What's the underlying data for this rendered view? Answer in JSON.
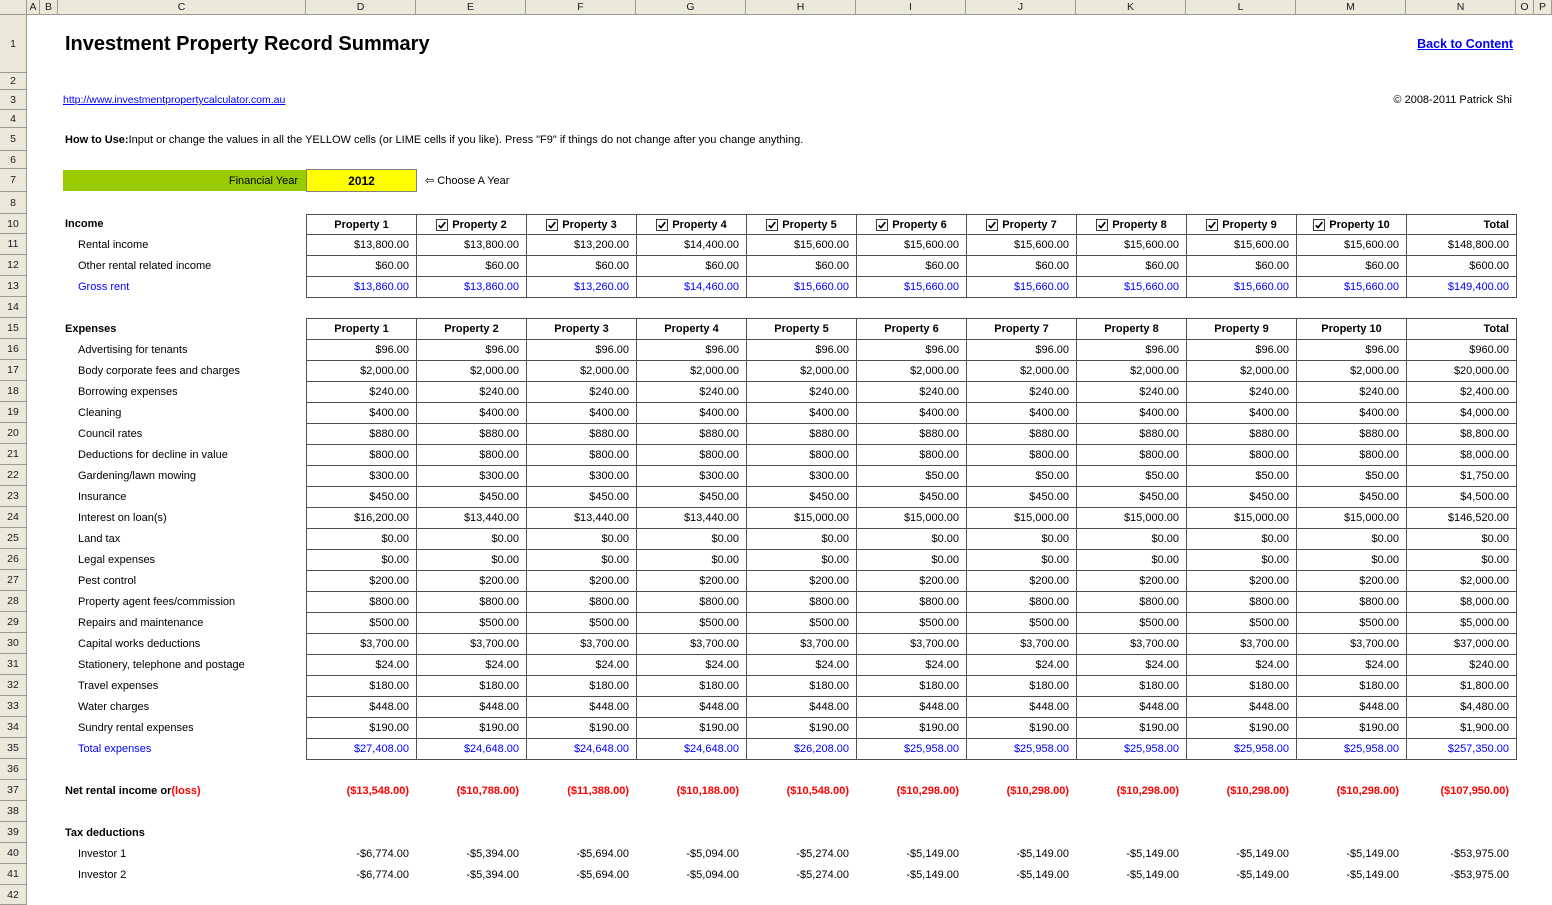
{
  "colors": {
    "lime": "#99CC00",
    "yellow": "#FFFF00",
    "link_blue": "#0000FF",
    "formula_blue": "#0000FF",
    "loss_red": "#FF0000",
    "header_grey": "#ECE9DB"
  },
  "sheet": {
    "column_letters": [
      "A",
      "B",
      "C",
      "D",
      "E",
      "F",
      "G",
      "H",
      "I",
      "J",
      "K",
      "L",
      "M",
      "N",
      "O",
      "P"
    ],
    "row_numbers": [
      "1",
      "2",
      "3",
      "4",
      "5",
      "6",
      "7",
      "8",
      "10",
      "11",
      "12",
      "13",
      "14",
      "15",
      "16",
      "17",
      "18",
      "19",
      "20",
      "21",
      "22",
      "23",
      "24",
      "25",
      "26",
      "27",
      "28",
      "29",
      "30",
      "31",
      "32",
      "33",
      "34",
      "35",
      "36",
      "37",
      "38",
      "39",
      "40",
      "41",
      "42"
    ]
  },
  "header": {
    "title": "Investment Property Record Summary",
    "back_link": "Back to Content",
    "url": "http://www.investmentpropertycalculator.com.au",
    "copyright": "© 2008-2011 Patrick Shi",
    "how_to_use_label": "How to Use:",
    "how_to_use_text": " Input or change the values in all the YELLOW cells (or LIME cells if you like). Press \"F9\" if things do not change after you change anything."
  },
  "financial_year": {
    "label": "Financial Year",
    "value": "2012",
    "hint": "⇦ Choose A Year"
  },
  "income": {
    "section_label": "Income",
    "columns": [
      {
        "label": "Property 1",
        "checkbox": false
      },
      {
        "label": "Property 2",
        "checkbox": true
      },
      {
        "label": "Property 3",
        "checkbox": true
      },
      {
        "label": "Property 4",
        "checkbox": true
      },
      {
        "label": "Property 5",
        "checkbox": true
      },
      {
        "label": "Property 6",
        "checkbox": true
      },
      {
        "label": "Property 7",
        "checkbox": true
      },
      {
        "label": "Property 8",
        "checkbox": true
      },
      {
        "label": "Property 9",
        "checkbox": true
      },
      {
        "label": "Property 10",
        "checkbox": true
      },
      {
        "label": "Total",
        "checkbox": false
      }
    ],
    "rows": [
      {
        "label": "Rental income",
        "style": "normal",
        "values": [
          "$13,800.00",
          "$13,800.00",
          "$13,200.00",
          "$14,400.00",
          "$15,600.00",
          "$15,600.00",
          "$15,600.00",
          "$15,600.00",
          "$15,600.00",
          "$15,600.00",
          "$148,800.00"
        ]
      },
      {
        "label": "Other rental related income",
        "style": "normal",
        "values": [
          "$60.00",
          "$60.00",
          "$60.00",
          "$60.00",
          "$60.00",
          "$60.00",
          "$60.00",
          "$60.00",
          "$60.00",
          "$60.00",
          "$600.00"
        ]
      },
      {
        "label": "Gross rent",
        "style": "blue",
        "values": [
          "$13,860.00",
          "$13,860.00",
          "$13,260.00",
          "$14,460.00",
          "$15,660.00",
          "$15,660.00",
          "$15,660.00",
          "$15,660.00",
          "$15,660.00",
          "$15,660.00",
          "$149,400.00"
        ]
      }
    ]
  },
  "expenses": {
    "section_label": "Expenses",
    "columns": [
      {
        "label": "Property 1",
        "checkbox": false
      },
      {
        "label": "Property 2",
        "checkbox": false
      },
      {
        "label": "Property 3",
        "checkbox": false
      },
      {
        "label": "Property 4",
        "checkbox": false
      },
      {
        "label": "Property 5",
        "checkbox": false
      },
      {
        "label": "Property 6",
        "checkbox": false
      },
      {
        "label": "Property 7",
        "checkbox": false
      },
      {
        "label": "Property 8",
        "checkbox": false
      },
      {
        "label": "Property 9",
        "checkbox": false
      },
      {
        "label": "Property 10",
        "checkbox": false
      },
      {
        "label": "Total",
        "checkbox": false
      }
    ],
    "rows": [
      {
        "label": "Advertising for tenants",
        "style": "normal",
        "values": [
          "$96.00",
          "$96.00",
          "$96.00",
          "$96.00",
          "$96.00",
          "$96.00",
          "$96.00",
          "$96.00",
          "$96.00",
          "$96.00",
          "$960.00"
        ]
      },
      {
        "label": "Body corporate fees and charges",
        "style": "normal",
        "values": [
          "$2,000.00",
          "$2,000.00",
          "$2,000.00",
          "$2,000.00",
          "$2,000.00",
          "$2,000.00",
          "$2,000.00",
          "$2,000.00",
          "$2,000.00",
          "$2,000.00",
          "$20,000.00"
        ]
      },
      {
        "label": "Borrowing expenses",
        "style": "normal",
        "values": [
          "$240.00",
          "$240.00",
          "$240.00",
          "$240.00",
          "$240.00",
          "$240.00",
          "$240.00",
          "$240.00",
          "$240.00",
          "$240.00",
          "$2,400.00"
        ]
      },
      {
        "label": "Cleaning",
        "style": "normal",
        "values": [
          "$400.00",
          "$400.00",
          "$400.00",
          "$400.00",
          "$400.00",
          "$400.00",
          "$400.00",
          "$400.00",
          "$400.00",
          "$400.00",
          "$4,000.00"
        ]
      },
      {
        "label": "Council rates",
        "style": "normal",
        "values": [
          "$880.00",
          "$880.00",
          "$880.00",
          "$880.00",
          "$880.00",
          "$880.00",
          "$880.00",
          "$880.00",
          "$880.00",
          "$880.00",
          "$8,800.00"
        ]
      },
      {
        "label": "Deductions for decline in value",
        "style": "normal",
        "values": [
          "$800.00",
          "$800.00",
          "$800.00",
          "$800.00",
          "$800.00",
          "$800.00",
          "$800.00",
          "$800.00",
          "$800.00",
          "$800.00",
          "$8,000.00"
        ]
      },
      {
        "label": "Gardening/lawn mowing",
        "style": "normal",
        "values": [
          "$300.00",
          "$300.00",
          "$300.00",
          "$300.00",
          "$300.00",
          "$50.00",
          "$50.00",
          "$50.00",
          "$50.00",
          "$50.00",
          "$1,750.00"
        ]
      },
      {
        "label": "Insurance",
        "style": "normal",
        "values": [
          "$450.00",
          "$450.00",
          "$450.00",
          "$450.00",
          "$450.00",
          "$450.00",
          "$450.00",
          "$450.00",
          "$450.00",
          "$450.00",
          "$4,500.00"
        ]
      },
      {
        "label": "Interest on loan(s)",
        "style": "normal",
        "values": [
          "$16,200.00",
          "$13,440.00",
          "$13,440.00",
          "$13,440.00",
          "$15,000.00",
          "$15,000.00",
          "$15,000.00",
          "$15,000.00",
          "$15,000.00",
          "$15,000.00",
          "$146,520.00"
        ]
      },
      {
        "label": "Land tax",
        "style": "normal",
        "values": [
          "$0.00",
          "$0.00",
          "$0.00",
          "$0.00",
          "$0.00",
          "$0.00",
          "$0.00",
          "$0.00",
          "$0.00",
          "$0.00",
          "$0.00"
        ]
      },
      {
        "label": "Legal expenses",
        "style": "normal",
        "values": [
          "$0.00",
          "$0.00",
          "$0.00",
          "$0.00",
          "$0.00",
          "$0.00",
          "$0.00",
          "$0.00",
          "$0.00",
          "$0.00",
          "$0.00"
        ]
      },
      {
        "label": "Pest control",
        "style": "normal",
        "values": [
          "$200.00",
          "$200.00",
          "$200.00",
          "$200.00",
          "$200.00",
          "$200.00",
          "$200.00",
          "$200.00",
          "$200.00",
          "$200.00",
          "$2,000.00"
        ]
      },
      {
        "label": "Property agent fees/commission",
        "style": "normal",
        "values": [
          "$800.00",
          "$800.00",
          "$800.00",
          "$800.00",
          "$800.00",
          "$800.00",
          "$800.00",
          "$800.00",
          "$800.00",
          "$800.00",
          "$8,000.00"
        ]
      },
      {
        "label": "Repairs and maintenance",
        "style": "normal",
        "values": [
          "$500.00",
          "$500.00",
          "$500.00",
          "$500.00",
          "$500.00",
          "$500.00",
          "$500.00",
          "$500.00",
          "$500.00",
          "$500.00",
          "$5,000.00"
        ]
      },
      {
        "label": "Capital works deductions",
        "style": "normal",
        "values": [
          "$3,700.00",
          "$3,700.00",
          "$3,700.00",
          "$3,700.00",
          "$3,700.00",
          "$3,700.00",
          "$3,700.00",
          "$3,700.00",
          "$3,700.00",
          "$3,700.00",
          "$37,000.00"
        ]
      },
      {
        "label": "Stationery, telephone and postage",
        "style": "normal",
        "values": [
          "$24.00",
          "$24.00",
          "$24.00",
          "$24.00",
          "$24.00",
          "$24.00",
          "$24.00",
          "$24.00",
          "$24.00",
          "$24.00",
          "$240.00"
        ]
      },
      {
        "label": "Travel expenses",
        "style": "normal",
        "values": [
          "$180.00",
          "$180.00",
          "$180.00",
          "$180.00",
          "$180.00",
          "$180.00",
          "$180.00",
          "$180.00",
          "$180.00",
          "$180.00",
          "$1,800.00"
        ]
      },
      {
        "label": "Water charges",
        "style": "normal",
        "values": [
          "$448.00",
          "$448.00",
          "$448.00",
          "$448.00",
          "$448.00",
          "$448.00",
          "$448.00",
          "$448.00",
          "$448.00",
          "$448.00",
          "$4,480.00"
        ]
      },
      {
        "label": "Sundry rental expenses",
        "style": "normal",
        "values": [
          "$190.00",
          "$190.00",
          "$190.00",
          "$190.00",
          "$190.00",
          "$190.00",
          "$190.00",
          "$190.00",
          "$190.00",
          "$190.00",
          "$1,900.00"
        ]
      },
      {
        "label": "Total expenses",
        "style": "blue",
        "values": [
          "$27,408.00",
          "$24,648.00",
          "$24,648.00",
          "$24,648.00",
          "$26,208.00",
          "$25,958.00",
          "$25,958.00",
          "$25,958.00",
          "$25,958.00",
          "$25,958.00",
          "$257,350.00"
        ]
      }
    ]
  },
  "net_rental": {
    "label": "Net rental income or ",
    "loss_label": "(loss)",
    "values": [
      "($13,548.00)",
      "($10,788.00)",
      "($11,388.00)",
      "($10,188.00)",
      "($10,548.00)",
      "($10,298.00)",
      "($10,298.00)",
      "($10,298.00)",
      "($10,298.00)",
      "($10,298.00)",
      "($107,950.00)"
    ]
  },
  "tax_deductions": {
    "section_label": "Tax deductions",
    "rows": [
      {
        "label": "Investor 1",
        "values": [
          "-$6,774.00",
          "-$5,394.00",
          "-$5,694.00",
          "-$5,094.00",
          "-$5,274.00",
          "-$5,149.00",
          "-$5,149.00",
          "-$5,149.00",
          "-$5,149.00",
          "-$5,149.00",
          "-$53,975.00"
        ]
      },
      {
        "label": "Investor 2",
        "values": [
          "-$6,774.00",
          "-$5,394.00",
          "-$5,694.00",
          "-$5,094.00",
          "-$5,274.00",
          "-$5,149.00",
          "-$5,149.00",
          "-$5,149.00",
          "-$5,149.00",
          "-$5,149.00",
          "-$53,975.00"
        ]
      }
    ]
  }
}
